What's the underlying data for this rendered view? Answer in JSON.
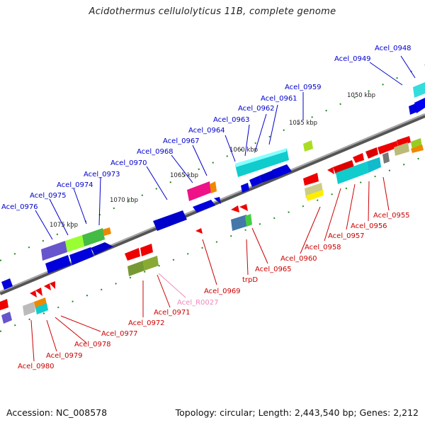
{
  "title": "Acidothermus cellulolyticus 11B, complete genome",
  "footer": {
    "accession": "Accession: NC_008578",
    "summary": "Topology: circular; Length: 2,443,540 bp; Genes: 2,212"
  },
  "colors": {
    "forward_label": "#0000cc",
    "reverse_label": "#cc0000",
    "rna_label": "#ee88bb",
    "backbone": "#808080",
    "tick": "#228822"
  },
  "scale_labels": [
    "1050 kbp",
    "1055 kbp",
    "1060 kbp",
    "1065 kbp",
    "1070 kbp",
    "1075 kbp"
  ],
  "forward_genes": [
    "Acel_0948",
    "Acel_0949",
    "Acel_0959",
    "Acel_0961",
    "Acel_0962",
    "Acel_0963",
    "Acel_0964",
    "Acel_0967",
    "Acel_0968",
    "Acel_0970",
    "Acel_0973",
    "Acel_0974",
    "Acel_0975",
    "Acel_0976"
  ],
  "reverse_genes": [
    "Acel_0955",
    "Acel_0956",
    "Acel_0957",
    "Acel_0958",
    "Acel_0960",
    "Acel_0965",
    "trpD",
    "Acel_0969",
    "Acel_0971",
    "Acel_0972",
    "Acel_0977",
    "Acel_0978",
    "Acel_0979",
    "Acel_0980"
  ],
  "rna_genes": [
    "Acel_R0027"
  ]
}
